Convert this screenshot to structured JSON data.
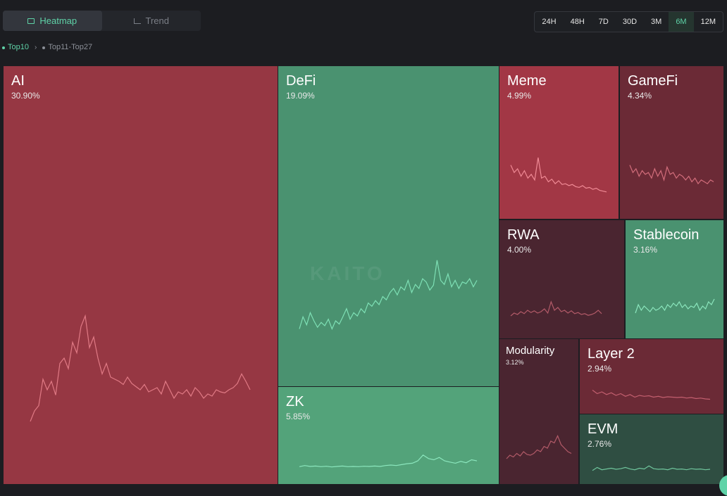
{
  "view_toggle": {
    "heatmap_label": "Heatmap",
    "trend_label": "Trend",
    "active": "Heatmap",
    "heatmap_icon": "heatmap-icon",
    "trend_icon": "trend-icon"
  },
  "time_ranges": {
    "items": [
      "24H",
      "48H",
      "7D",
      "30D",
      "3M",
      "6M",
      "12M"
    ],
    "active": "6M"
  },
  "breadcrumb": {
    "top10": "Top10",
    "top11_27": "Top11-Top27",
    "separator_icon": "chevron-right-icon"
  },
  "colors": {
    "accent": "#5fd3a8",
    "background": "#1c1d21",
    "red_strong": "#a23745",
    "red_mid": "#963743",
    "red_dark": "#6b2a36",
    "red_darker": "#4a2530",
    "green_mid": "#4a9270",
    "green_light": "#53a37a",
    "green_dark": "#2f4e42"
  },
  "tiles": [
    {
      "id": "ai",
      "name": "AI",
      "pct": "30.90%",
      "color": "#963743",
      "line_color": "#e07a85",
      "series": [
        0.0,
        0.1,
        0.15,
        0.4,
        0.3,
        0.38,
        0.25,
        0.55,
        0.6,
        0.5,
        0.75,
        0.65,
        0.9,
        1.0,
        0.7,
        0.8,
        0.6,
        0.45,
        0.55,
        0.42,
        0.4,
        0.38,
        0.35,
        0.42,
        0.36,
        0.33,
        0.3,
        0.35,
        0.28,
        0.3,
        0.32,
        0.26,
        0.38,
        0.3,
        0.22,
        0.28,
        0.26,
        0.3,
        0.24,
        0.32,
        0.28,
        0.22,
        0.26,
        0.24,
        0.3,
        0.28,
        0.27,
        0.3,
        0.32,
        0.36,
        0.45,
        0.38,
        0.3
      ]
    },
    {
      "id": "defi",
      "name": "DeFi",
      "pct": "19.09%",
      "color": "#4a9270",
      "line_color": "#7ee0b5",
      "series": [
        0.1,
        0.25,
        0.15,
        0.3,
        0.2,
        0.12,
        0.18,
        0.14,
        0.22,
        0.1,
        0.2,
        0.16,
        0.25,
        0.35,
        0.22,
        0.3,
        0.26,
        0.35,
        0.3,
        0.42,
        0.38,
        0.45,
        0.4,
        0.5,
        0.46,
        0.55,
        0.6,
        0.52,
        0.62,
        0.58,
        0.7,
        0.55,
        0.65,
        0.6,
        0.72,
        0.68,
        0.58,
        0.64,
        0.95,
        0.7,
        0.65,
        0.78,
        0.62,
        0.7,
        0.6,
        0.68,
        0.66,
        0.72,
        0.62,
        0.7
      ]
    },
    {
      "id": "zk",
      "name": "ZK",
      "pct": "5.85%",
      "color": "#53a37a",
      "line_color": "#8be6bd",
      "series": [
        0.05,
        0.1,
        0.06,
        0.08,
        0.05,
        0.07,
        0.04,
        0.06,
        0.08,
        0.05,
        0.06,
        0.05,
        0.07,
        0.06,
        0.08,
        0.06,
        0.1,
        0.12,
        0.1,
        0.14,
        0.18,
        0.2,
        0.3,
        0.55,
        0.4,
        0.35,
        0.45,
        0.3,
        0.25,
        0.2,
        0.28,
        0.22,
        0.35,
        0.3
      ]
    },
    {
      "id": "meme",
      "name": "Meme",
      "pct": "4.99%",
      "color": "#a23745",
      "line_color": "#f08a95",
      "series": [
        0.8,
        0.6,
        0.7,
        0.5,
        0.65,
        0.45,
        0.55,
        0.4,
        1.0,
        0.45,
        0.5,
        0.35,
        0.42,
        0.3,
        0.38,
        0.28,
        0.3,
        0.25,
        0.28,
        0.22,
        0.2,
        0.25,
        0.18,
        0.2,
        0.15,
        0.18,
        0.12,
        0.1,
        0.08
      ]
    },
    {
      "id": "gamefi",
      "name": "GameFi",
      "pct": "4.34%",
      "color": "#6b2a36",
      "line_color": "#d26d7b",
      "series": [
        0.8,
        0.6,
        0.7,
        0.5,
        0.65,
        0.55,
        0.6,
        0.45,
        0.7,
        0.5,
        0.65,
        0.4,
        0.75,
        0.55,
        0.6,
        0.45,
        0.55,
        0.5,
        0.4,
        0.5,
        0.35,
        0.45,
        0.3,
        0.4,
        0.35,
        0.3,
        0.4,
        0.35
      ]
    },
    {
      "id": "rwa",
      "name": "RWA",
      "pct": "4.00%",
      "color": "#4a2530",
      "line_color": "#b25a68",
      "series": [
        0.1,
        0.2,
        0.15,
        0.25,
        0.18,
        0.3,
        0.22,
        0.28,
        0.2,
        0.25,
        0.35,
        0.2,
        0.6,
        0.3,
        0.4,
        0.25,
        0.3,
        0.2,
        0.28,
        0.18,
        0.22,
        0.15,
        0.18,
        0.12,
        0.15,
        0.2,
        0.3,
        0.18
      ]
    },
    {
      "id": "stablecoin",
      "name": "Stablecoin",
      "pct": "3.16%",
      "color": "#4a9270",
      "line_color": "#8be6bd",
      "series": [
        0.2,
        0.5,
        0.3,
        0.45,
        0.35,
        0.25,
        0.4,
        0.3,
        0.35,
        0.45,
        0.3,
        0.5,
        0.4,
        0.55,
        0.45,
        0.6,
        0.4,
        0.5,
        0.35,
        0.45,
        0.4,
        0.55,
        0.3,
        0.45,
        0.35,
        0.6,
        0.5,
        0.7
      ]
    },
    {
      "id": "modularity",
      "name": "Modularity",
      "pct": "3.12%",
      "color": "#4a2530",
      "line_color": "#b25a68",
      "series": [
        0.1,
        0.2,
        0.15,
        0.25,
        0.18,
        0.3,
        0.22,
        0.2,
        0.25,
        0.35,
        0.3,
        0.45,
        0.4,
        0.6,
        0.55,
        0.75,
        0.5,
        0.4,
        0.3,
        0.25
      ]
    },
    {
      "id": "layer2",
      "name": "Layer 2",
      "pct": "2.94%",
      "color": "#6b2a36",
      "line_color": "#c35f6f",
      "series": [
        0.7,
        0.5,
        0.6,
        0.45,
        0.55,
        0.4,
        0.5,
        0.35,
        0.45,
        0.3,
        0.4,
        0.35,
        0.38,
        0.3,
        0.35,
        0.28,
        0.32,
        0.3,
        0.28,
        0.3,
        0.25,
        0.28,
        0.22,
        0.25,
        0.2,
        0.18
      ]
    },
    {
      "id": "evm",
      "name": "EVM",
      "pct": "2.76%",
      "color": "#2f4e42",
      "line_color": "#6fc59c",
      "series": [
        0.1,
        0.3,
        0.15,
        0.2,
        0.25,
        0.18,
        0.22,
        0.3,
        0.2,
        0.15,
        0.25,
        0.2,
        0.4,
        0.22,
        0.18,
        0.2,
        0.15,
        0.25,
        0.18,
        0.2,
        0.15,
        0.22,
        0.18,
        0.2,
        0.15,
        0.18
      ]
    }
  ],
  "watermark": "KAITO"
}
